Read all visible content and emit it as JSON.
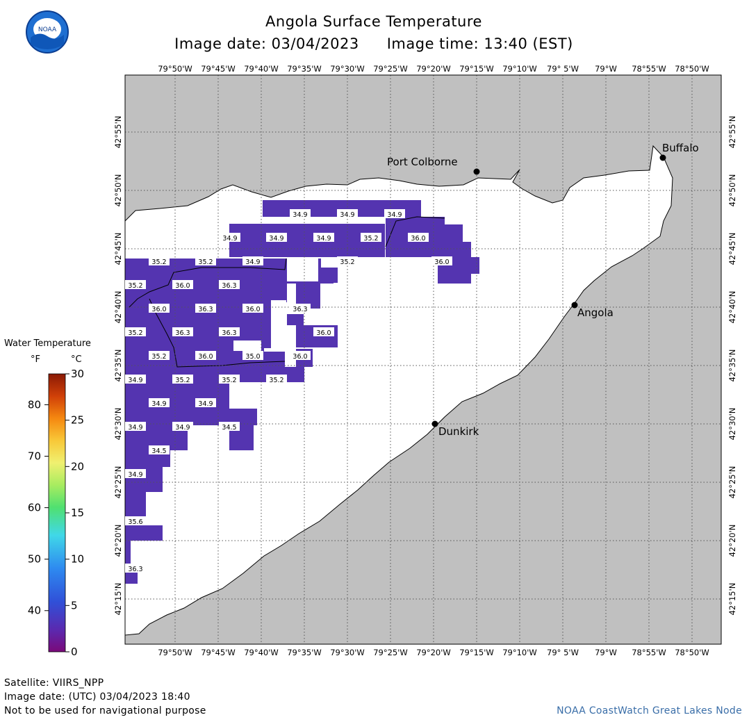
{
  "header": {
    "title": "Angola Surface Temperature",
    "date_text": "Image date: 03/04/2023",
    "time_text": "Image time: 13:40 (EST)",
    "logo_text": "NOAA"
  },
  "map": {
    "lon_labels": [
      "79°50'W",
      "79°45'W",
      "79°40'W",
      "79°35'W",
      "79°30'W",
      "79°25'W",
      "79°20'W",
      "79°15'W",
      "79°10'W",
      "79° 5'W",
      "79°W",
      "78°55'W",
      "78°50'W"
    ],
    "lat_labels": [
      "42°55'N",
      "42°50'N",
      "42°45'N",
      "42°40'N",
      "42°35'N",
      "42°30'N",
      "42°25'N",
      "42°20'N",
      "42°15'N"
    ],
    "cities": [
      {
        "name": "Port Colborne"
      },
      {
        "name": "Buffalo"
      },
      {
        "name": "Angola"
      },
      {
        "name": "Dunkirk"
      }
    ],
    "temperature_labels": [
      "34.9",
      "34.9",
      "34.9",
      "34.9",
      "34.9",
      "34.9",
      "35.2",
      "36.0",
      "35.2",
      "35.2",
      "34.9",
      "35.2",
      "36.0",
      "35.2",
      "36.0",
      "36.3",
      "36.0",
      "36.3",
      "36.0",
      "36.3",
      "35.2",
      "36.3",
      "36.3",
      "36.0",
      "35.2",
      "36.0",
      "35.0",
      "36.0",
      "34.9",
      "35.2",
      "35.2",
      "35.2",
      "34.9",
      "34.9",
      "34.9",
      "34.9",
      "34.5",
      "34.5",
      "34.9",
      "35.6",
      "36.3"
    ],
    "colors": {
      "land": "#c0c0c0",
      "water": "#ffffff",
      "sst": "#5434b0",
      "grid": "#555555"
    }
  },
  "colorbar": {
    "title": "Water Temperature",
    "unit_f": "°F",
    "unit_c": "°C",
    "f_ticks": [
      "80",
      "70",
      "60",
      "50",
      "40"
    ],
    "c_ticks": [
      "30",
      "25",
      "20",
      "15",
      "10",
      "5",
      "0"
    ]
  },
  "footer": {
    "satellite": "Satellite: VIIRS_NPP",
    "utc_date": "Image date: (UTC) 03/04/2023  18:40",
    "disclaimer": "Not to be used for navigational purpose",
    "credit": "NOAA CoastWatch Great Lakes Node"
  }
}
